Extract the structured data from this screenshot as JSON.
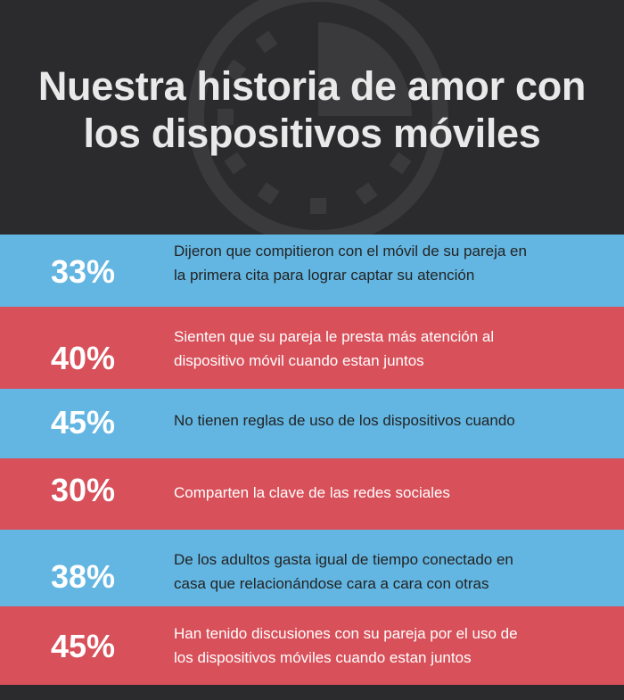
{
  "title": {
    "line1": "Nuestra historia de amor con",
    "line2": "los dispositivos móviles"
  },
  "background_icon": "clock-icon",
  "colors": {
    "header_bg": "#2b2b2d",
    "blue_row": "#63b6e2",
    "red_row": "#d8505a",
    "title_text": "#e9e9e9"
  },
  "stats": [
    {
      "percent": "33%",
      "text": "Dijeron que  compitieron con el móvil de su pareja en\nla primera cita para lograr captar su atención"
    },
    {
      "percent": "40%",
      "text": "Sienten que su pareja le presta más atención al\ndispositivo móvil cuando estan juntos"
    },
    {
      "percent": "45%",
      "text": "No tienen reglas de uso de los dispositivos cuando"
    },
    {
      "percent": "30%",
      "text": "Comparten la clave de las redes sociales"
    },
    {
      "percent": "38%",
      "text": "De los adultos gasta igual de tiempo conectado en\ncasa que relacionándose cara a cara con otras"
    },
    {
      "percent": "45%",
      "text": "Han tenido discusiones con su pareja por el uso de\nlos dispositivos móviles cuando estan juntos"
    }
  ]
}
